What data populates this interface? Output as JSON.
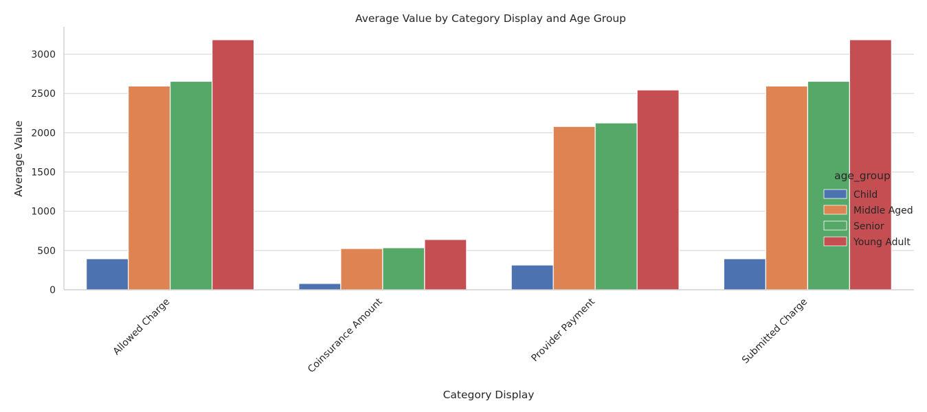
{
  "chart_data": {
    "type": "bar",
    "title": "Average Value by Category Display and Age Group",
    "xlabel": "Category Display",
    "ylabel": "Average Value",
    "ylim": [
      0,
      3350
    ],
    "yticks": [
      0,
      500,
      1000,
      1500,
      2000,
      2500,
      3000
    ],
    "grid": "horizontal",
    "categories": [
      "Allowed Charge",
      "Coinsurance Amount",
      "Provider Payment",
      "Submitted Charge"
    ],
    "series": [
      {
        "name": "Child",
        "color": "#4c72b0",
        "values": [
          395,
          80,
          315,
          395
        ]
      },
      {
        "name": "Middle Aged",
        "color": "#dd8452",
        "values": [
          2595,
          525,
          2080,
          2595
        ]
      },
      {
        "name": "Senior",
        "color": "#55a868",
        "values": [
          2655,
          535,
          2125,
          2655
        ]
      },
      {
        "name": "Young Adult",
        "color": "#c44e52",
        "values": [
          3185,
          640,
          2545,
          3185
        ]
      }
    ],
    "legend": {
      "title": "age_group",
      "placement": "right"
    }
  }
}
